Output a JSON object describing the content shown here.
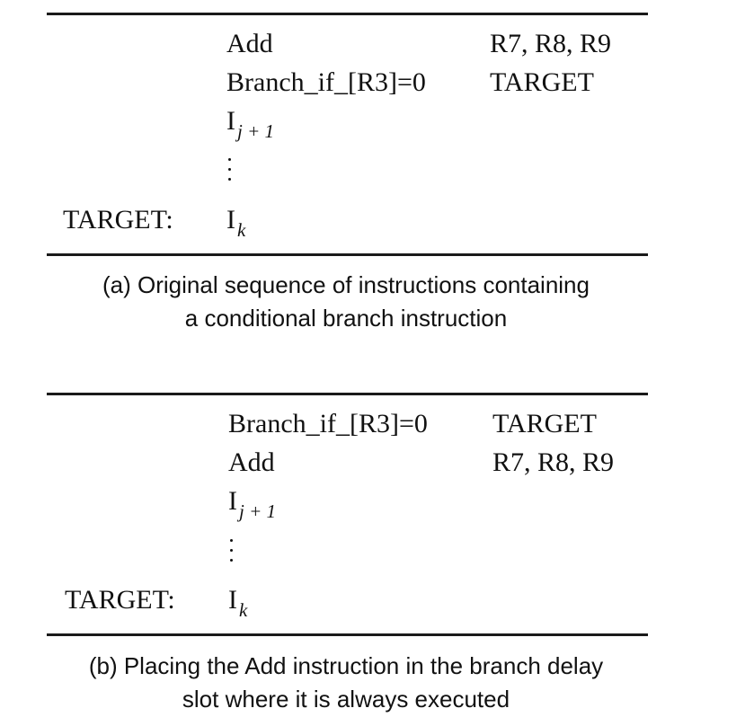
{
  "panel_a": {
    "rows": [
      {
        "label": "",
        "op": "Add",
        "operand": "R7, R8, R9"
      },
      {
        "label": "",
        "op": "Branch_if_[R3]=0",
        "operand": "TARGET"
      },
      {
        "label": "",
        "op_base": "I",
        "op_sub": "j + 1"
      },
      {
        "label": "TARGET:",
        "op_base": "I",
        "op_sub": "k"
      }
    ],
    "caption_line1": "(a) Original sequence of instructions containing",
    "caption_line2": "a conditional branch instruction"
  },
  "panel_b": {
    "rows": [
      {
        "label": "",
        "op": "Branch_if_[R3]=0",
        "operand": "TARGET"
      },
      {
        "label": "",
        "op": "Add",
        "operand": "R7, R8, R9"
      },
      {
        "label": "",
        "op_base": "I",
        "op_sub": "j + 1"
      },
      {
        "label": "TARGET:",
        "op_base": "I",
        "op_sub": "k"
      }
    ],
    "caption_line1": "(b) Placing the Add instruction in the branch delay",
    "caption_line2": "slot where it is always executed"
  }
}
